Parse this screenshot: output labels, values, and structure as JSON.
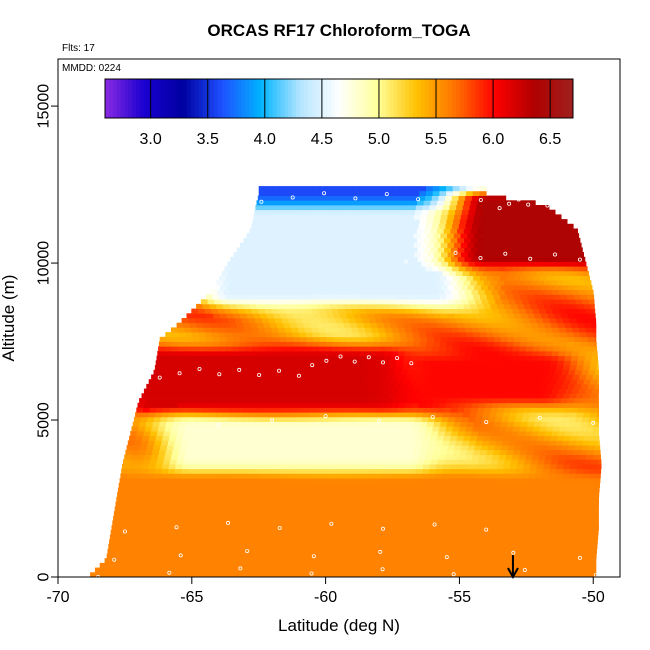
{
  "chart_data": {
    "type": "heatmap",
    "title": "ORCAS RF17 Chloroform_TOGA",
    "xlabel": "Latitude (deg N)",
    "ylabel": "Altitude (m)",
    "flights_label": "Flts: 17",
    "date_label": "MMDD: 0224",
    "xlim": [
      -70,
      -49
    ],
    "ylim": [
      0,
      16500
    ],
    "x_ticks": [
      -70,
      -65,
      -60,
      -55,
      -50
    ],
    "x_tick_labels": [
      "-70",
      "-65",
      "-60",
      "-55",
      "-50"
    ],
    "y_ticks": [
      0,
      5000,
      10000,
      15000
    ],
    "y_tick_labels": [
      "0",
      "5000",
      "10000",
      "15000"
    ],
    "colorbar": {
      "min": 2.6,
      "max": 6.7,
      "ticks": [
        3.0,
        3.5,
        4.0,
        4.5,
        5.0,
        5.5,
        6.0,
        6.5
      ],
      "tick_labels": [
        "3.0",
        "3.5",
        "4.0",
        "4.5",
        "5.0",
        "5.5",
        "6.0",
        "6.5"
      ],
      "colors": [
        "#8a2be2",
        "#1a00d0",
        "#0000a0",
        "#1e50ff",
        "#00b4ff",
        "#b4e4ff",
        "#ffffff",
        "#ffff99",
        "#ffc000",
        "#ff7000",
        "#ff0000",
        "#b00000",
        "#a02020"
      ]
    },
    "coverage_profile": {
      "altitude_m": [
        0,
        500,
        1500,
        2500,
        3500,
        4500,
        5500,
        6500,
        7500,
        8000,
        9000,
        10000,
        11000,
        11800,
        12100
      ],
      "south_edge_lat": [
        -68.8,
        -68.2,
        -68.0,
        -67.8,
        -67.6,
        -67.3,
        -67.0,
        -66.4,
        -66.2,
        -65.5,
        -64.3,
        -63.6,
        -62.8,
        -62.6,
        -62.5
      ],
      "north_edge_lat": [
        -49.9,
        -49.9,
        -49.8,
        -49.8,
        -49.7,
        -49.8,
        -49.8,
        -49.8,
        -49.9,
        -49.9,
        -50.0,
        -50.3,
        -50.6,
        -51.8,
        -54.0
      ]
    },
    "concentration_features": [
      {
        "label": "upper cap low values",
        "alt_range_m": [
          11800,
          12400
        ],
        "lat_range": [
          -62.5,
          -54.0
        ],
        "value": 3.6
      },
      {
        "label": "upper tropospheric minimum",
        "alt_range_m": [
          9000,
          11500
        ],
        "lat_range": [
          -63.5,
          -56.0
        ],
        "value": 4.5
      },
      {
        "label": "upper high north",
        "alt_range_m": [
          10200,
          12000
        ],
        "lat_range": [
          -54.0,
          -50.5
        ],
        "value": 6.4
      },
      {
        "label": "mid-level high band",
        "alt_range_m": [
          5500,
          7000
        ],
        "lat_range": [
          -66.5,
          -58.0
        ],
        "value": 6.2
      },
      {
        "label": "mid-level band north",
        "alt_range_m": [
          5800,
          6800
        ],
        "lat_range": [
          -56.0,
          -52.0
        ],
        "value": 6.0
      },
      {
        "label": "low-level minimum",
        "alt_range_m": [
          3500,
          4800
        ],
        "lat_range": [
          -65.0,
          -57.0
        ],
        "value": 4.8
      },
      {
        "label": "boundary layer",
        "alt_range_m": [
          0,
          3000
        ],
        "lat_range": [
          -68.5,
          -50.0
        ],
        "value": 5.6
      }
    ],
    "annotations": [
      {
        "type": "arrow",
        "label": "downward arrow",
        "x": -53,
        "y_range": [
          700,
          0
        ]
      }
    ]
  }
}
